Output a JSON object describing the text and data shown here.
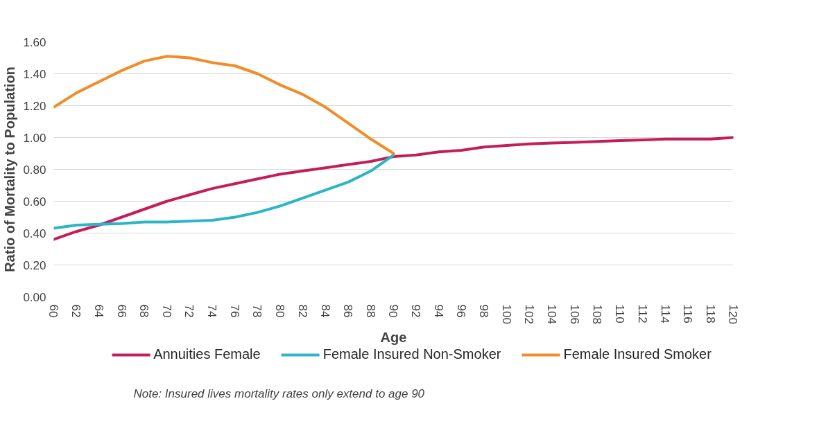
{
  "chart_data": {
    "type": "line",
    "xlabel": "Age",
    "ylabel": "Ratio of Mortality to Population",
    "x": [
      60,
      62,
      64,
      66,
      68,
      70,
      72,
      74,
      76,
      78,
      80,
      82,
      84,
      86,
      88,
      90,
      92,
      94,
      96,
      98,
      100,
      102,
      104,
      106,
      108,
      110,
      112,
      114,
      116,
      118,
      120
    ],
    "xlim": [
      60,
      120
    ],
    "xticks": [
      60,
      62,
      64,
      66,
      68,
      70,
      72,
      74,
      76,
      78,
      80,
      82,
      84,
      86,
      88,
      90,
      92,
      94,
      96,
      98,
      100,
      102,
      104,
      106,
      108,
      110,
      112,
      114,
      116,
      118,
      120
    ],
    "ylim": [
      0,
      1.6
    ],
    "yticks": [
      {
        "value": 0,
        "label": "0.00"
      },
      {
        "value": 0.2,
        "label": "0.20"
      },
      {
        "value": 0.4,
        "label": "0.40"
      },
      {
        "value": 0.6,
        "label": "0.60"
      },
      {
        "value": 0.8,
        "label": "0.80"
      },
      {
        "value": 1.0,
        "label": "1.00"
      },
      {
        "value": 1.2,
        "label": "1.20"
      },
      {
        "value": 1.4,
        "label": "1.40"
      },
      {
        "value": 1.6,
        "label": "1.60"
      }
    ],
    "grid": "y",
    "legend": "bottom",
    "line_style": "solid",
    "series": [
      {
        "name": "Annuities Female",
        "color": "#c41e5a",
        "values": [
          0.36,
          0.41,
          0.45,
          0.5,
          0.55,
          0.6,
          0.64,
          0.68,
          0.71,
          0.74,
          0.77,
          0.79,
          0.81,
          0.83,
          0.85,
          0.88,
          0.89,
          0.91,
          0.92,
          0.94,
          0.95,
          0.96,
          0.965,
          0.97,
          0.975,
          0.98,
          0.985,
          0.99,
          0.99,
          0.99,
          1.0
        ]
      },
      {
        "name": "Female Insured Non-Smoker",
        "color": "#2bb5c8",
        "x": [
          60,
          62,
          64,
          66,
          68,
          70,
          72,
          74,
          76,
          78,
          80,
          82,
          84,
          86,
          88,
          90
        ],
        "values": [
          0.43,
          0.45,
          0.455,
          0.46,
          0.47,
          0.47,
          0.475,
          0.48,
          0.5,
          0.53,
          0.57,
          0.62,
          0.67,
          0.72,
          0.79,
          0.89
        ]
      },
      {
        "name": "Female Insured Smoker",
        "color": "#f28c28",
        "x": [
          60,
          62,
          64,
          66,
          68,
          70,
          72,
          74,
          76,
          78,
          80,
          82,
          84,
          86,
          88,
          90
        ],
        "values": [
          1.19,
          1.28,
          1.35,
          1.42,
          1.48,
          1.51,
          1.5,
          1.47,
          1.45,
          1.4,
          1.33,
          1.27,
          1.19,
          1.09,
          0.99,
          0.9
        ]
      }
    ],
    "annotations": [
      "Note: Insured lives mortality rates only extend to age 90"
    ]
  }
}
